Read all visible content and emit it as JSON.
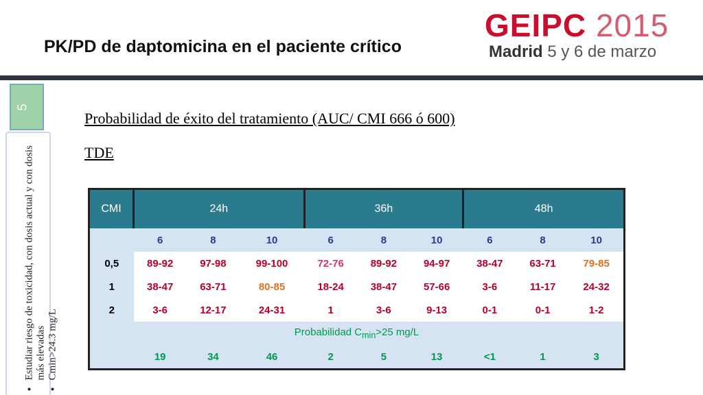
{
  "header": {
    "title": "PK/PD de daptomicina en el paciente crítico",
    "logo_name": "GEIPC",
    "logo_year": "2015",
    "city": "Madrid",
    "dates": "5 y 6 de marzo"
  },
  "slide_number": "5",
  "sidebar": {
    "bullets": [
      "Estudiar riesgo de toxicidad, con dosis actual y con dosis más elevadas",
      "Cmin>24.3 mg/L"
    ]
  },
  "content": {
    "heading": "Probabilidad de éxito del tratamiento (AUC/ CMI 666 ó 600)",
    "subheading": "TDE"
  },
  "table": {
    "corner": "CMI",
    "groups": [
      "24h",
      "36h",
      "48h"
    ],
    "doses": [
      "6",
      "8",
      "10",
      "6",
      "8",
      "10",
      "6",
      "8",
      "10"
    ],
    "rows": [
      {
        "cmi": "0,5",
        "cells": [
          "89-92",
          "97-98",
          "99-100",
          "72-76",
          "89-92",
          "94-97",
          "38-47",
          "63-71",
          "79-85"
        ],
        "colors": [
          "#b8002a",
          "#b8002a",
          "#b8002a",
          "#d6336c",
          "#b8002a",
          "#b8002a",
          "#b8002a",
          "#b8002a",
          "#e07020"
        ]
      },
      {
        "cmi": "1",
        "cells": [
          "38-47",
          "63-71",
          "80-85",
          "18-24",
          "38-47",
          "57-66",
          "3-6",
          "11-17",
          "24-32"
        ],
        "colors": [
          "#b8002a",
          "#b8002a",
          "#e07020",
          "#b8002a",
          "#b8002a",
          "#b8002a",
          "#b8002a",
          "#b8002a",
          "#b8002a"
        ]
      },
      {
        "cmi": "2",
        "cells": [
          "3-6",
          "12-17",
          "24-31",
          "1",
          "3-6",
          "9-13",
          "0-1",
          "0-1",
          "1-2"
        ],
        "colors": [
          "#b8002a",
          "#b8002a",
          "#b8002a",
          "#b8002a",
          "#b8002a",
          "#b8002a",
          "#b8002a",
          "#b8002a",
          "#b8002a"
        ]
      }
    ],
    "probability": {
      "label_parts": [
        "Probabilidad C",
        "min",
        ">25 mg/L"
      ],
      "values": [
        "19",
        "34",
        "46",
        "2",
        "5",
        "13",
        "<1",
        "1",
        "3"
      ],
      "color": "#00994c"
    }
  }
}
